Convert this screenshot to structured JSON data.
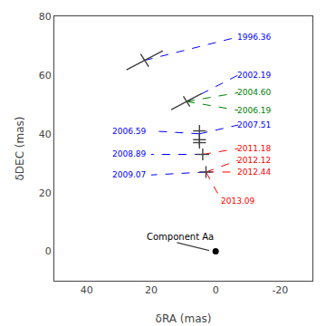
{
  "chart_data": {
    "type": "line",
    "xlabel": "δRA (mas)",
    "ylabel": "δDEC (mas)",
    "xlim": [
      50,
      -30
    ],
    "ylim": [
      -10,
      80
    ],
    "xticks": [
      40,
      20,
      0,
      -20
    ],
    "yticks": [
      0,
      20,
      40,
      60,
      80
    ],
    "grid": false,
    "epochs": [
      {
        "label": "1996.36",
        "color": "blue",
        "x": [
          22,
          -7
        ],
        "y": [
          65,
          73
        ],
        "label_x": -6,
        "label_y": 73
      },
      {
        "label": "2002.19",
        "color": "blue",
        "x": [
          9,
          -7
        ],
        "y": [
          51,
          60
        ],
        "label_x": -6,
        "label_y": 60
      },
      {
        "label": "2004.60",
        "color": "green",
        "x": [
          9,
          -7
        ],
        "y": [
          51,
          54
        ],
        "label_x": -6,
        "label_y": 54
      },
      {
        "label": "2006.19",
        "color": "green",
        "x": [
          9,
          -7
        ],
        "y": [
          51,
          48
        ],
        "label_x": -6,
        "label_y": 48
      },
      {
        "label": "2006.59",
        "color": "blue",
        "x": [
          5,
          20
        ],
        "y": [
          40,
          41
        ],
        "label_x": 21,
        "label_y": 41
      },
      {
        "label": "2007.51",
        "color": "blue",
        "x": [
          5,
          -7
        ],
        "y": [
          40,
          43
        ],
        "label_x": -6,
        "label_y": 43
      },
      {
        "label": "2008.89",
        "color": "blue",
        "x": [
          4,
          20
        ],
        "y": [
          33,
          33
        ],
        "label_x": 21,
        "label_y": 33
      },
      {
        "label": "2009.07",
        "color": "blue",
        "x": [
          3,
          20
        ],
        "y": [
          27,
          26
        ],
        "label_x": 21,
        "label_y": 26
      },
      {
        "label": "2011.18",
        "color": "red",
        "x": [
          4,
          -7
        ],
        "y": [
          33,
          35
        ],
        "label_x": -6,
        "label_y": 35
      },
      {
        "label": "2012.12",
        "color": "red",
        "x": [
          3,
          -7
        ],
        "y": [
          27,
          31
        ],
        "label_x": -6,
        "label_y": 31
      },
      {
        "label": "2012.44",
        "color": "red",
        "x": [
          3,
          -7
        ],
        "y": [
          27,
          27
        ],
        "label_x": -6,
        "label_y": 27
      },
      {
        "label": "2013.09",
        "color": "red",
        "x": [
          3,
          -2
        ],
        "y": [
          27,
          17
        ],
        "label_x": -1,
        "label_y": 17
      }
    ],
    "crosses": {
      "color": "#404040",
      "points": [
        {
          "x": 22,
          "y": 65,
          "angle": -30,
          "err_x": 6.5,
          "err_y": 2.5
        },
        {
          "x": 9,
          "y": 51,
          "angle": -30,
          "err_x": 5.5,
          "err_y": 2.0
        },
        {
          "x": 5,
          "y": 41,
          "angle": 0,
          "err_x": 2.0,
          "err_y": 2.0
        },
        {
          "x": 5,
          "y": 38,
          "angle": 0,
          "err_x": 2.0,
          "err_y": 2.0
        },
        {
          "x": 5,
          "y": 37,
          "angle": 0,
          "err_x": 2.0,
          "err_y": 2.0
        },
        {
          "x": 4,
          "y": 33,
          "angle": 0,
          "err_x": 2.0,
          "err_y": 2.0
        },
        {
          "x": 3,
          "y": 27,
          "angle": 0,
          "err_x": 2.0,
          "err_y": 2.0
        }
      ]
    },
    "component": {
      "label": "Component Aa",
      "color": "black",
      "x": 0,
      "y": 0,
      "line_color": "#404040",
      "line_x": [
        12,
        2
      ],
      "line_y": [
        3,
        0.3
      ],
      "label_x": 22,
      "label_y": 5
    }
  }
}
